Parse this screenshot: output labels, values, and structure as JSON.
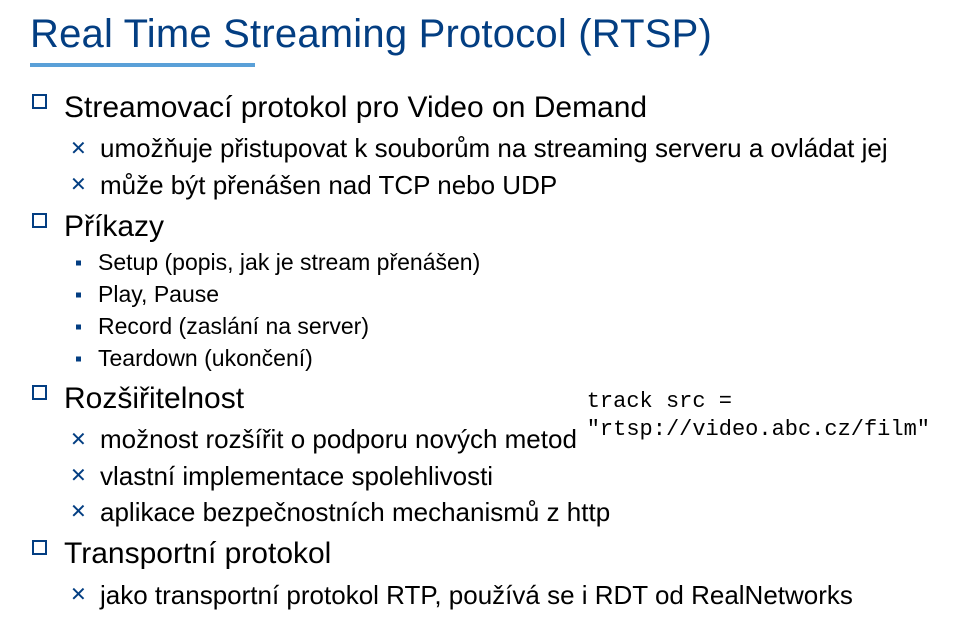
{
  "colors": {
    "title": "#033e82",
    "underline": "#5aa0d8",
    "text": "#000000",
    "bullet_square": "#033e82",
    "bullet_x": "#033e82",
    "bullet_dot": "#033e82"
  },
  "title": "Real Time Streaming Protocol (RTSP)",
  "code": {
    "line1": "track src =",
    "line2": "\"rtsp://video.abc.cz/film\""
  },
  "items": [
    {
      "label": "Streamovací protokol pro Video on Demand",
      "children": [
        {
          "label": "umožňuje přistupovat k souborům na streaming serveru a ovládat jej"
        },
        {
          "label": "může být přenášen nad TCP nebo UDP"
        }
      ]
    },
    {
      "label": "Příkazy",
      "children3": [
        {
          "label": "Setup (popis, jak je stream přenášen)"
        },
        {
          "label": "Play, Pause"
        },
        {
          "label": "Record (zaslání na server)"
        },
        {
          "label": "Teardown (ukončení)"
        }
      ]
    },
    {
      "label": "Rozšiřitelnost",
      "children": [
        {
          "label": "možnost rozšířit o podporu nových metod"
        },
        {
          "label": "vlastní implementace spolehlivosti"
        },
        {
          "label": "aplikace bezpečnostních mechanismů z http"
        }
      ]
    },
    {
      "label": "Transportní protokol",
      "children": [
        {
          "label": "jako transportní protokol RTP, používá se i RDT od RealNetworks"
        }
      ]
    }
  ]
}
